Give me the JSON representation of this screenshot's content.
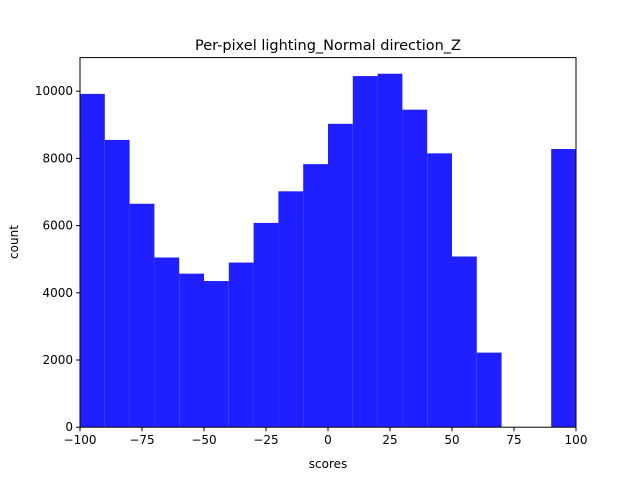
{
  "chart_data": {
    "type": "bar",
    "title": "Per-pixel lighting_Normal direction_Z",
    "xlabel": "scores",
    "ylabel": "count",
    "xlim": [
      -100,
      100
    ],
    "ylim": [
      0,
      11000
    ],
    "bin_width": 10,
    "bins": [
      {
        "start": -100,
        "value": 9920
      },
      {
        "start": -90,
        "value": 8550
      },
      {
        "start": -80,
        "value": 6650
      },
      {
        "start": -70,
        "value": 5050
      },
      {
        "start": -60,
        "value": 4570
      },
      {
        "start": -50,
        "value": 4350
      },
      {
        "start": -40,
        "value": 4900
      },
      {
        "start": -30,
        "value": 6080
      },
      {
        "start": -20,
        "value": 7020
      },
      {
        "start": -10,
        "value": 7830
      },
      {
        "start": 0,
        "value": 9030
      },
      {
        "start": 10,
        "value": 10450
      },
      {
        "start": 20,
        "value": 10520
      },
      {
        "start": 30,
        "value": 9450
      },
      {
        "start": 40,
        "value": 8150
      },
      {
        "start": 50,
        "value": 5080
      },
      {
        "start": 60,
        "value": 2220
      },
      {
        "start": 70,
        "value": 0
      },
      {
        "start": 80,
        "value": 0
      },
      {
        "start": 90,
        "value": 8280
      }
    ],
    "xticks": [
      "−100",
      "−75",
      "−50",
      "−25",
      "0",
      "25",
      "50",
      "75",
      "100"
    ],
    "yticks": [
      "0",
      "2000",
      "4000",
      "6000",
      "8000",
      "10000"
    ],
    "bar_color": "#1f1fff",
    "grid": false,
    "legend": "none"
  }
}
